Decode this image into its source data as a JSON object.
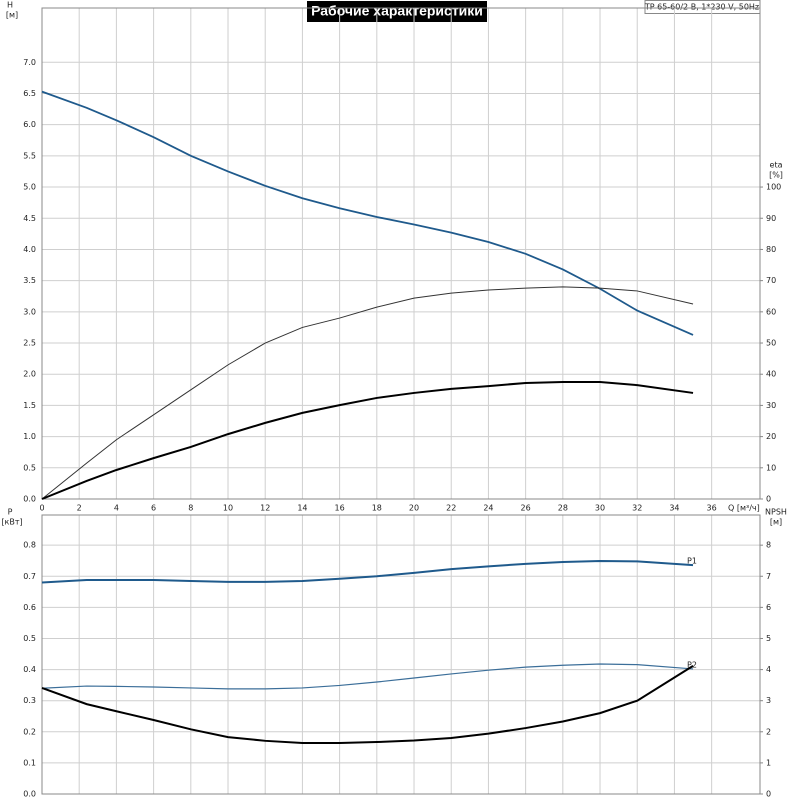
{
  "title": "Рабочие характеристики",
  "model": "TP 65-60/2 B, 1*230 V, 50Hz",
  "chart_data": [
    {
      "type": "line",
      "ylabel": "H",
      "yunit": "[м]",
      "y2label": "eta",
      "y2unit": "[%]",
      "xlabel": "Q [м³/ч]",
      "x": [
        0,
        2.4,
        4,
        6,
        8,
        10,
        12,
        14,
        16,
        18,
        20,
        22,
        24,
        26,
        28,
        30,
        32,
        35
      ],
      "xlim": [
        0,
        38.6
      ],
      "xticks": [
        0,
        2,
        4,
        6,
        8,
        10,
        12,
        14,
        16,
        18,
        20,
        22,
        24,
        26,
        28,
        30,
        32,
        34,
        36
      ],
      "ylim": [
        0,
        7.87
      ],
      "yticks": [
        {
          "value": 0,
          "label": "0.0"
        },
        0.5,
        {
          "value": 1,
          "label": "1.0"
        },
        1.5,
        {
          "value": 2,
          "label": "2.0"
        },
        2.5,
        {
          "value": 3,
          "label": "3.0"
        },
        3.5,
        {
          "value": 4,
          "label": "4.0"
        },
        4.5,
        {
          "value": 5,
          "label": "5.0"
        },
        5.5,
        {
          "value": 6,
          "label": "6.0"
        },
        6.5,
        {
          "value": 7,
          "label": "7.0"
        }
      ],
      "y2lim": [
        0,
        157.4
      ],
      "y2ticks": [
        0,
        10,
        20,
        30,
        40,
        50,
        60,
        70,
        80,
        90,
        100
      ],
      "grid": true,
      "show_xtick_labels": true,
      "series": [
        {
          "color": "#1f5a8c",
          "axis": "y",
          "values": [
            6.53,
            6.27,
            6.07,
            5.8,
            5.5,
            5.25,
            5.02,
            4.82,
            4.66,
            4.52,
            4.4,
            4.27,
            4.12,
            3.93,
            3.68,
            3.37,
            3.02,
            2.63
          ]
        },
        {
          "color": "#333333",
          "axis": "y2",
          "values": [
            0,
            11.5,
            19,
            27,
            35,
            43,
            50,
            55,
            58,
            61.5,
            64.4,
            66,
            67,
            67.6,
            68,
            67.6,
            66.7,
            62.5
          ]
        },
        {
          "color": "#000000",
          "axis": "y2",
          "values": [
            0,
            5.8,
            9.3,
            13.1,
            16.7,
            20.8,
            24.4,
            27.6,
            30.1,
            32.4,
            34,
            35.3,
            36.2,
            37.2,
            37.5,
            37.5,
            36.5,
            34
          ]
        }
      ]
    },
    {
      "type": "line",
      "ylabel": "P",
      "yunit": "[кВт]",
      "y2label": "NPSH",
      "y2unit": "[м]",
      "x": [
        0,
        2.4,
        4,
        6,
        8,
        10,
        12,
        14,
        16,
        18,
        20,
        22,
        24,
        26,
        28,
        30,
        32,
        35
      ],
      "xlim": [
        0,
        38.6
      ],
      "xticks": [
        0,
        2,
        4,
        6,
        8,
        10,
        12,
        14,
        16,
        18,
        20,
        22,
        24,
        26,
        28,
        30,
        32,
        34,
        36
      ],
      "ylim": [
        0,
        0.897
      ],
      "yticks": [
        {
          "value": 0,
          "label": "0.0"
        },
        0.1,
        0.2,
        0.3,
        0.4,
        0.5,
        0.6,
        0.7,
        0.8
      ],
      "y2lim": [
        0,
        8.97
      ],
      "y2ticks": [
        0,
        1,
        2,
        3,
        4,
        5,
        6,
        7,
        8
      ],
      "grid": true,
      "show_xtick_labels": false,
      "series": [
        {
          "name": "P1",
          "color": "#1f5a8c",
          "axis": "y",
          "values": [
            0.68,
            0.688,
            0.688,
            0.688,
            0.685,
            0.682,
            0.682,
            0.685,
            0.692,
            0.7,
            0.711,
            0.723,
            0.732,
            0.74,
            0.746,
            0.749,
            0.748,
            0.736
          ]
        },
        {
          "name": "P2",
          "color": "#3b6e99",
          "axis": "y",
          "values": [
            0.34,
            0.347,
            0.346,
            0.344,
            0.341,
            0.338,
            0.338,
            0.341,
            0.349,
            0.36,
            0.373,
            0.386,
            0.398,
            0.408,
            0.414,
            0.418,
            0.416,
            0.402
          ]
        },
        {
          "color": "#000000",
          "axis": "y2",
          "values": [
            3.41,
            2.89,
            2.66,
            2.38,
            2.08,
            1.83,
            1.71,
            1.64,
            1.64,
            1.67,
            1.72,
            1.8,
            1.94,
            2.12,
            2.33,
            2.6,
            3.0,
            4.12
          ]
        }
      ]
    }
  ]
}
